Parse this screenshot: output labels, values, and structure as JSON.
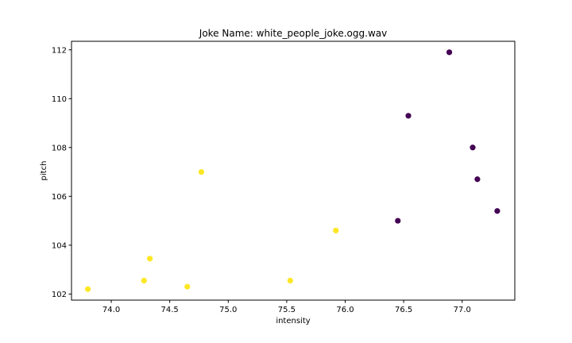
{
  "chart_data": {
    "type": "scatter",
    "title": "Joke Name: white_people_joke.ogg.wav",
    "xlabel": "intensity",
    "ylabel": "pitch",
    "xlim": [
      73.66,
      77.45
    ],
    "ylim": [
      101.75,
      112.35
    ],
    "xticks": [
      "74.0",
      "74.5",
      "75.0",
      "75.5",
      "76.0",
      "76.5",
      "77.0"
    ],
    "yticks": [
      "102",
      "104",
      "106",
      "108",
      "110",
      "112"
    ],
    "grid": false,
    "legend": "none",
    "series": [
      {
        "color": "#440154",
        "points": [
          {
            "x": 76.89,
            "y": 111.9
          },
          {
            "x": 76.54,
            "y": 109.3
          },
          {
            "x": 77.09,
            "y": 108.0
          },
          {
            "x": 77.13,
            "y": 106.7
          },
          {
            "x": 77.3,
            "y": 105.4
          },
          {
            "x": 76.45,
            "y": 105.0
          }
        ]
      },
      {
        "color": "#fde725",
        "points": [
          {
            "x": 74.77,
            "y": 107.0
          },
          {
            "x": 75.92,
            "y": 104.6
          },
          {
            "x": 74.33,
            "y": 103.45
          },
          {
            "x": 74.28,
            "y": 102.55
          },
          {
            "x": 75.53,
            "y": 102.55
          },
          {
            "x": 74.65,
            "y": 102.3
          },
          {
            "x": 73.8,
            "y": 102.2
          }
        ]
      }
    ]
  }
}
